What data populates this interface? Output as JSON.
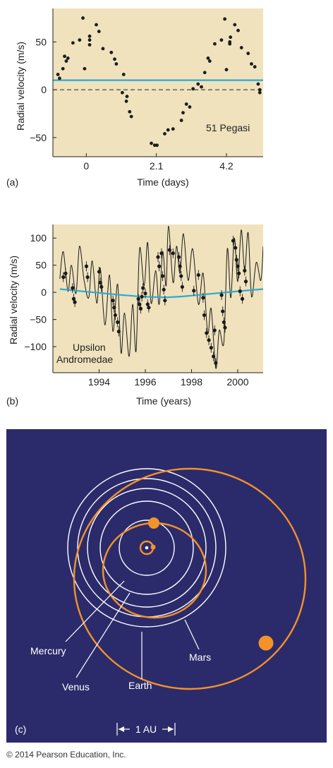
{
  "copyright": "© 2014 Pearson Education, Inc.",
  "colors": {
    "plot_bg": "#efe2bd",
    "fit_line": "#2fa8d0",
    "orbit_bg": "#2b2b6b",
    "orbit_white": "#ffffff",
    "orbit_orange": "#f4922a"
  },
  "chart_data": [
    {
      "type": "scatter",
      "panel": "(a)",
      "xlabel": "Time (days)",
      "ylabel": "Radial velocity (m/s)",
      "annotation": "51 Pegasi",
      "xlim": [
        -1.0,
        5.3
      ],
      "ylim": [
        -70,
        85
      ],
      "xticks": [
        0,
        2.1,
        4.2
      ],
      "xtick_labels": [
        "0",
        "2.1",
        "4.2"
      ],
      "yticks": [
        -50,
        0,
        50
      ],
      "ytick_labels": [
        "−50",
        "0",
        "50"
      ],
      "grid": false,
      "reference_lines": [
        {
          "name": "systemic velocity",
          "y": 10,
          "style": "solid",
          "color": "#2fa8d0"
        },
        {
          "name": "zero",
          "y": 0,
          "style": "dashed",
          "color": "#222222"
        }
      ],
      "points": [
        [
          -0.85,
          16
        ],
        [
          -0.8,
          12
        ],
        [
          -0.7,
          22
        ],
        [
          -0.65,
          35
        ],
        [
          -0.6,
          30
        ],
        [
          -0.55,
          33
        ],
        [
          -0.4,
          49
        ],
        [
          -0.2,
          52
        ],
        [
          -0.1,
          75
        ],
        [
          -0.05,
          22
        ],
        [
          0.1,
          47
        ],
        [
          0.1,
          52
        ],
        [
          0.1,
          56
        ],
        [
          0.3,
          68
        ],
        [
          0.38,
          61
        ],
        [
          0.5,
          43
        ],
        [
          0.75,
          39
        ],
        [
          0.85,
          32
        ],
        [
          0.9,
          27
        ],
        [
          1.08,
          -3
        ],
        [
          1.12,
          16
        ],
        [
          1.2,
          -12
        ],
        [
          1.22,
          -7
        ],
        [
          1.3,
          -23
        ],
        [
          1.35,
          -28
        ],
        [
          1.95,
          -56
        ],
        [
          2.05,
          -58
        ],
        [
          2.12,
          -58
        ],
        [
          2.35,
          -46
        ],
        [
          2.45,
          -42
        ],
        [
          2.6,
          -41
        ],
        [
          2.85,
          -32
        ],
        [
          2.9,
          -24
        ],
        [
          3.0,
          -15
        ],
        [
          3.1,
          -18
        ],
        [
          3.2,
          1
        ],
        [
          3.35,
          6
        ],
        [
          3.45,
          3
        ],
        [
          3.55,
          18
        ],
        [
          3.65,
          33
        ],
        [
          3.7,
          30
        ],
        [
          3.85,
          48
        ],
        [
          4.05,
          52
        ],
        [
          4.15,
          74
        ],
        [
          4.2,
          21
        ],
        [
          4.3,
          48
        ],
        [
          4.3,
          50
        ],
        [
          4.32,
          55
        ],
        [
          4.45,
          68
        ],
        [
          4.55,
          62
        ],
        [
          4.65,
          44
        ],
        [
          4.85,
          38
        ],
        [
          4.95,
          27
        ],
        [
          5.05,
          24
        ],
        [
          5.15,
          6
        ],
        [
          5.2,
          0
        ],
        [
          5.2,
          -3
        ]
      ]
    },
    {
      "type": "line",
      "panel": "(b)",
      "xlabel": "Time (years)",
      "ylabel": "Radial velocity (m/s)",
      "annotation": [
        "Upsilon",
        "Andromedae"
      ],
      "xlim": [
        1992.0,
        2001.1
      ],
      "ylim": [
        -148,
        125
      ],
      "xticks": [
        1994,
        1996,
        1998,
        2000
      ],
      "xtick_labels": [
        "1994",
        "1996",
        "1998",
        "2000"
      ],
      "yticks": [
        -100,
        -50,
        0,
        50,
        100
      ],
      "ytick_labels": [
        "−100",
        "−50",
        "0",
        "50",
        "100"
      ],
      "grid": false,
      "long_term_curve": [
        [
          1992.3,
          6
        ],
        [
          1993.0,
          3
        ],
        [
          1994.0,
          -1
        ],
        [
          1995.0,
          -5
        ],
        [
          1996.0,
          -8
        ],
        [
          1997.0,
          -9
        ],
        [
          1998.0,
          -6
        ],
        [
          1999.0,
          -2
        ],
        [
          2000.0,
          2
        ],
        [
          2001.1,
          6
        ]
      ],
      "model_curve": [
        [
          1992.3,
          25
        ],
        [
          1992.45,
          75
        ],
        [
          1992.65,
          2
        ],
        [
          1992.8,
          50
        ],
        [
          1993.0,
          -2
        ],
        [
          1993.15,
          85
        ],
        [
          1993.35,
          22
        ],
        [
          1993.55,
          -10
        ],
        [
          1993.7,
          58
        ],
        [
          1993.9,
          -20
        ],
        [
          1994.05,
          45
        ],
        [
          1994.25,
          -60
        ],
        [
          1994.45,
          32
        ],
        [
          1994.6,
          -72
        ],
        [
          1994.8,
          15
        ],
        [
          1994.95,
          -112
        ],
        [
          1995.1,
          -38
        ],
        [
          1995.3,
          -118
        ],
        [
          1995.45,
          -22
        ],
        [
          1995.6,
          -108
        ],
        [
          1995.75,
          80
        ],
        [
          1995.95,
          12
        ],
        [
          1996.1,
          92
        ],
        [
          1996.25,
          -20
        ],
        [
          1996.45,
          40
        ],
        [
          1996.6,
          -22
        ],
        [
          1996.75,
          75
        ],
        [
          1996.9,
          12
        ],
        [
          1997.0,
          122
        ],
        [
          1997.2,
          18
        ],
        [
          1997.35,
          85
        ],
        [
          1997.5,
          35
        ],
        [
          1997.65,
          108
        ],
        [
          1997.85,
          22
        ],
        [
          1998.05,
          80
        ],
        [
          1998.3,
          -22
        ],
        [
          1998.5,
          35
        ],
        [
          1998.7,
          -75
        ],
        [
          1998.85,
          -30
        ],
        [
          1999.05,
          -140
        ],
        [
          1999.2,
          -70
        ],
        [
          1999.4,
          -92
        ],
        [
          1999.55,
          80
        ],
        [
          1999.7,
          -10
        ],
        [
          1999.85,
          100
        ],
        [
          2000.0,
          20
        ],
        [
          2000.15,
          115
        ],
        [
          2000.3,
          40
        ],
        [
          2000.45,
          110
        ],
        [
          2000.6,
          -8
        ],
        [
          2000.8,
          55
        ],
        [
          2001.0,
          22
        ],
        [
          2001.1,
          85
        ]
      ],
      "points": [
        [
          1992.45,
          28
        ],
        [
          1992.55,
          35
        ],
        [
          1992.85,
          8
        ],
        [
          1992.9,
          -12
        ],
        [
          1992.95,
          -18
        ],
        [
          1993.45,
          48
        ],
        [
          1993.5,
          28
        ],
        [
          1994.0,
          38
        ],
        [
          1994.05,
          18
        ],
        [
          1994.1,
          10
        ],
        [
          1994.6,
          -15
        ],
        [
          1994.65,
          -28
        ],
        [
          1994.7,
          -42
        ],
        [
          1994.8,
          -55
        ],
        [
          1994.85,
          -72
        ],
        [
          1995.7,
          -12
        ],
        [
          1995.75,
          -22
        ],
        [
          1995.8,
          -30
        ],
        [
          1995.85,
          -8
        ],
        [
          1995.9,
          8
        ],
        [
          1996.0,
          -2
        ],
        [
          1996.1,
          -22
        ],
        [
          1996.15,
          -28
        ],
        [
          1996.55,
          65
        ],
        [
          1996.6,
          48
        ],
        [
          1996.7,
          72
        ],
        [
          1996.75,
          30
        ],
        [
          1996.8,
          5
        ],
        [
          1996.85,
          -15
        ],
        [
          1997.05,
          78
        ],
        [
          1997.2,
          72
        ],
        [
          1997.45,
          65
        ],
        [
          1997.5,
          48
        ],
        [
          1997.55,
          30
        ],
        [
          1997.6,
          10
        ],
        [
          1998.1,
          3
        ],
        [
          1998.3,
          32
        ],
        [
          1998.5,
          -10
        ],
        [
          1998.55,
          -42
        ],
        [
          1998.65,
          -75
        ],
        [
          1998.75,
          -88
        ],
        [
          1998.85,
          -102
        ],
        [
          1998.95,
          -118
        ],
        [
          1999.0,
          -70
        ],
        [
          1999.05,
          -130
        ],
        [
          1999.3,
          -5
        ],
        [
          1999.35,
          -35
        ],
        [
          1999.4,
          -55
        ],
        [
          1999.45,
          -65
        ],
        [
          1999.8,
          95
        ],
        [
          1999.9,
          82
        ],
        [
          1999.95,
          60
        ],
        [
          2000.0,
          48
        ],
        [
          2000.05,
          35
        ],
        [
          2000.1,
          2
        ],
        [
          2000.2,
          -12
        ],
        [
          2000.3,
          40
        ],
        [
          2000.35,
          20
        ]
      ]
    },
    {
      "type": "diagram",
      "panel": "(c)",
      "labels": [
        "Mercury",
        "Venus",
        "Earth",
        "Mars"
      ],
      "scale_label": "1 AU"
    }
  ]
}
